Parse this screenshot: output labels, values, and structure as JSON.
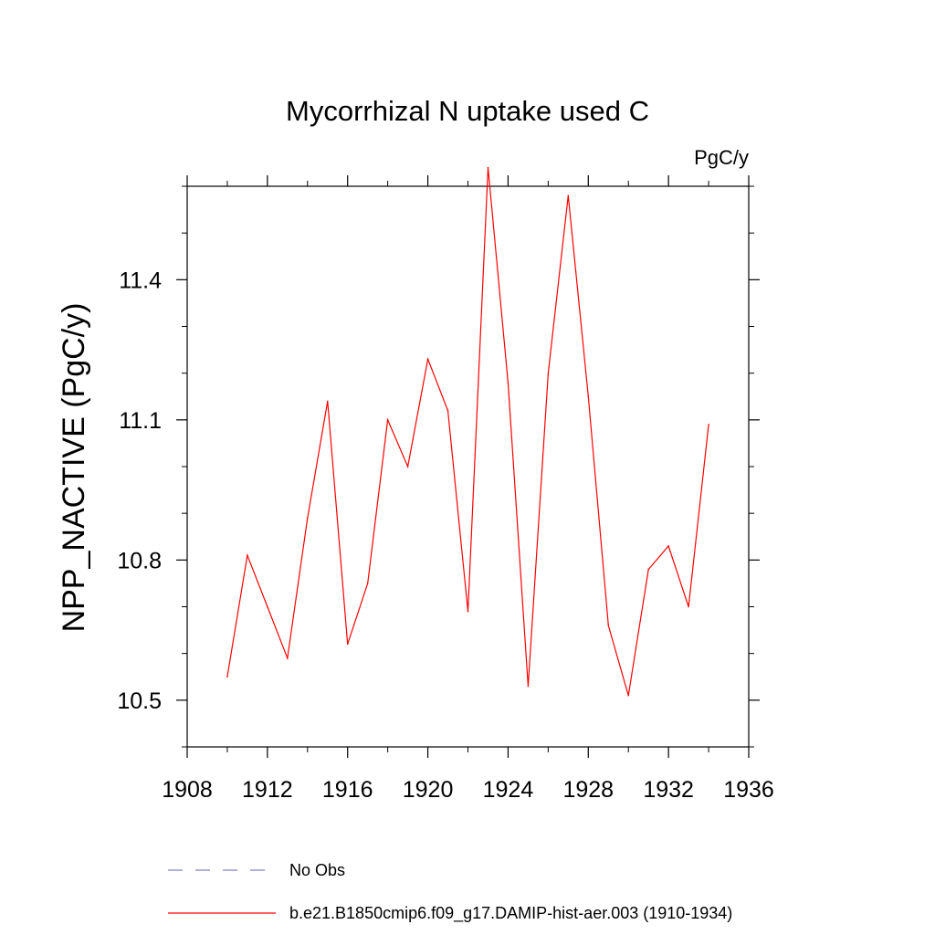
{
  "chart_data": {
    "type": "line",
    "title": "Mycorrhizal N uptake used C",
    "units_label": "PgC/y",
    "xlabel": "",
    "ylabel": "NPP_NACTIVE  (PgC/y)",
    "xlim": [
      1908,
      1936
    ],
    "ylim": [
      10.4,
      11.6
    ],
    "x_ticks": [
      "1908",
      "1912",
      "1916",
      "1920",
      "1924",
      "1928",
      "1932",
      "1936"
    ],
    "y_ticks": [
      "10.5",
      "10.8",
      "11.1",
      "11.4"
    ],
    "grid": false,
    "legend_position": "bottom",
    "series": [
      {
        "name": "b.e21.B1850cmip6.f09_g17.DAMIP-hist-aer.003 (1910-1934)",
        "color": "#ff0000",
        "style": "solid",
        "x": [
          1910,
          1911,
          1912,
          1913,
          1914,
          1915,
          1916,
          1917,
          1918,
          1919,
          1920,
          1921,
          1922,
          1923,
          1924,
          1925,
          1926,
          1927,
          1928,
          1929,
          1930,
          1931,
          1932,
          1933,
          1934
        ],
        "y": [
          10.55,
          10.81,
          10.7,
          10.59,
          10.89,
          11.14,
          10.62,
          10.75,
          11.1,
          11.0,
          11.23,
          11.12,
          10.69,
          11.64,
          11.18,
          10.53,
          11.2,
          11.58,
          11.15,
          10.66,
          10.51,
          10.78,
          10.83,
          10.7,
          11.09
        ]
      }
    ],
    "legend": [
      {
        "label": "No Obs",
        "color": "#8080c0",
        "style": "dashed"
      },
      {
        "label": "b.e21.B1850cmip6.f09_g17.DAMIP-hist-aer.003 (1910-1934)",
        "color": "#ff0000",
        "style": "solid"
      }
    ]
  }
}
